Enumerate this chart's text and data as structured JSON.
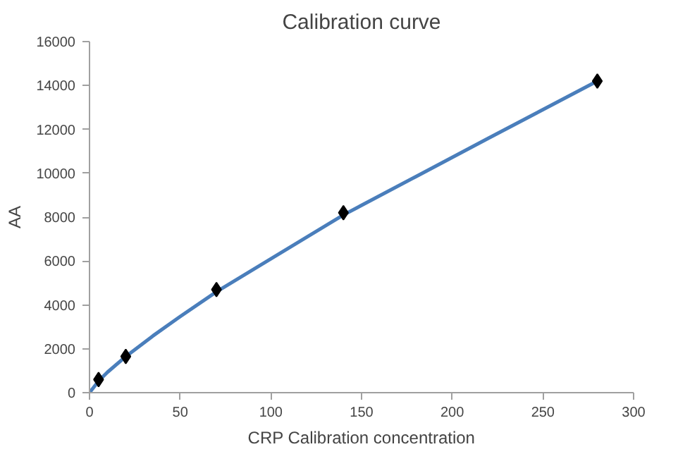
{
  "chart_data": {
    "type": "scatter",
    "title": "Calibration curve",
    "xlabel": "CRP Calibration concentration",
    "ylabel": "AA",
    "xlim": [
      0,
      300
    ],
    "xticks": [
      0,
      50,
      100,
      150,
      200,
      250,
      300
    ],
    "ylim": [
      0,
      16000
    ],
    "yticks": [
      0,
      2000,
      4000,
      6000,
      8000,
      10000,
      12000,
      14000,
      16000
    ],
    "grid": false,
    "series": [
      {
        "type": "line",
        "color": "#4a7ebb",
        "marker": "none",
        "line_style": "solid",
        "x": [
          0,
          5,
          10,
          20,
          35,
          50,
          70,
          100,
          140,
          180,
          220,
          280
        ],
        "values": [
          0,
          530,
          940,
          1650,
          2590,
          3470,
          4600,
          6100,
          8100,
          9850,
          11600,
          14200
        ]
      },
      {
        "color": "#000000",
        "marker": "diamond",
        "x": [
          5,
          20,
          70,
          140,
          280
        ],
        "values": [
          600,
          1650,
          4700,
          8200,
          14200
        ]
      }
    ]
  }
}
